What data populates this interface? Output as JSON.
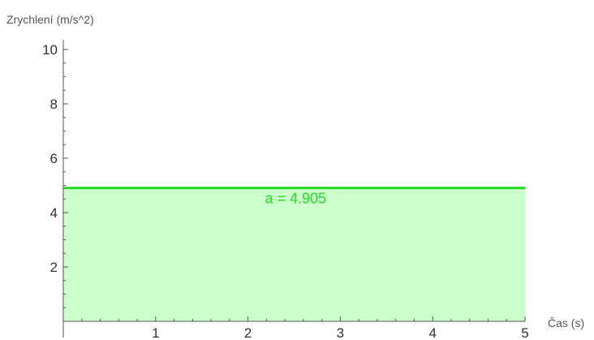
{
  "chart_data": {
    "type": "area",
    "xlabel": "Čas (s)",
    "ylabel": "Zrychlení (m/s^2)",
    "xlim": [
      0,
      5
    ],
    "ylim": [
      0,
      10
    ],
    "xticks": [
      1,
      2,
      3,
      4,
      5
    ],
    "yticks": [
      2,
      4,
      6,
      8,
      10
    ],
    "grid": false,
    "series": [
      {
        "x": [
          0,
          5
        ],
        "y": [
          4.905,
          4.905
        ]
      }
    ],
    "annotations": [
      {
        "text": "a = 4.905",
        "x": 2.5,
        "y": 4.905
      }
    ],
    "colors": {
      "line": "#22dd22",
      "fill": "#ccffcc",
      "annotation": "#22dd22",
      "axis": "#555555"
    }
  }
}
